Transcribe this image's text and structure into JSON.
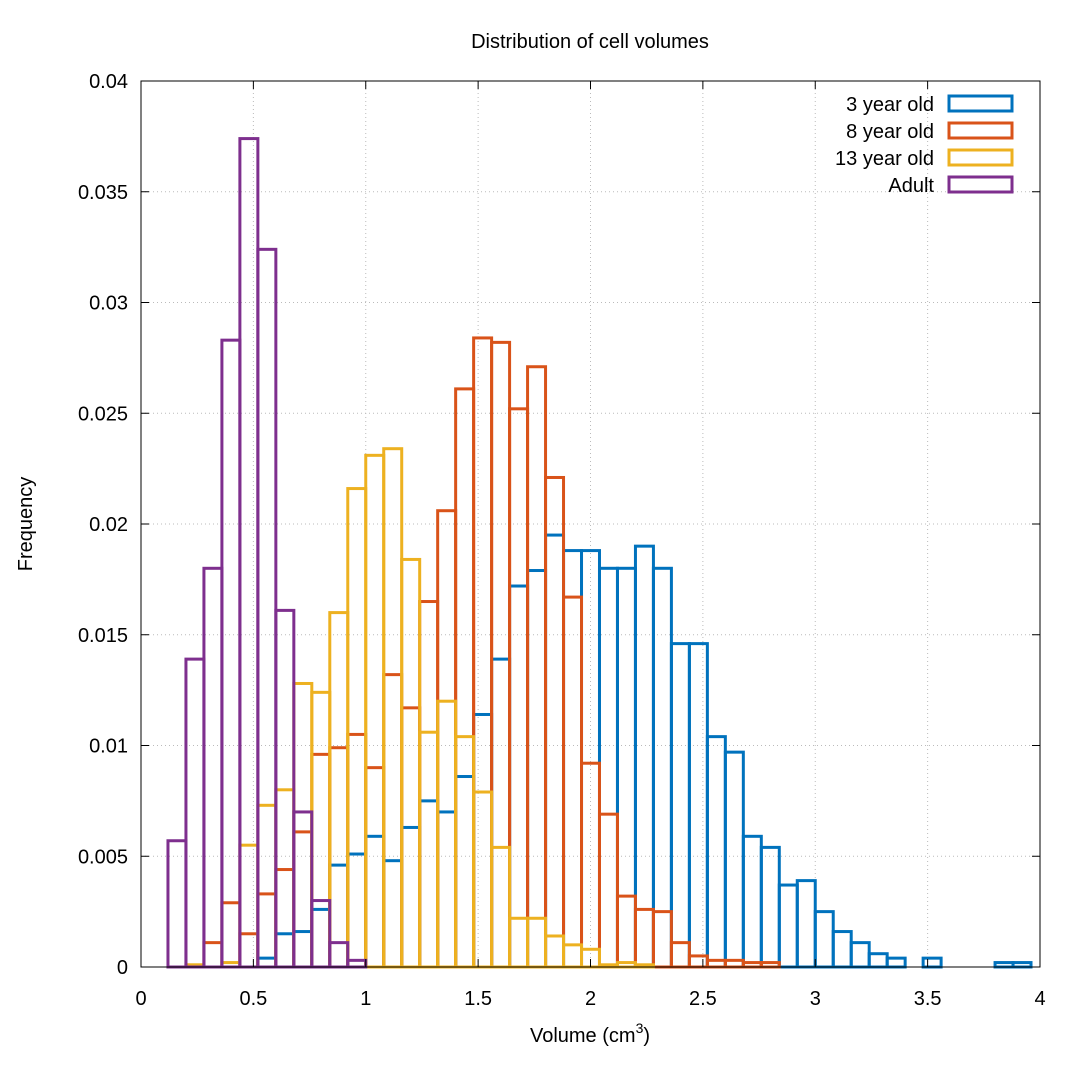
{
  "chart_data": {
    "type": "bar",
    "title": "Distribution of cell volumes",
    "xlabel": "Volume (cm",
    "xlabel_superscript": "3",
    "xlabel_suffix": ")",
    "ylabel": "Frequency",
    "xlim": [
      0,
      4
    ],
    "ylim": [
      0,
      0.04
    ],
    "xticks": [
      "0",
      "0.5",
      "1",
      "1.5",
      "2",
      "2.5",
      "3",
      "3.5",
      "4"
    ],
    "yticks": [
      "0",
      "0.005",
      "0.01",
      "0.015",
      "0.02",
      "0.025",
      "0.03",
      "0.035",
      "0.04"
    ],
    "grid": true,
    "legend_position": "top-right",
    "bin_width": 0.08,
    "series": [
      {
        "name": "3 year old",
        "color": "#0072bd",
        "x": [
          0.56,
          0.64,
          0.72,
          0.8,
          0.88,
          0.96,
          1.04,
          1.12,
          1.2,
          1.28,
          1.36,
          1.44,
          1.52,
          1.6,
          1.68,
          1.76,
          1.84,
          1.92,
          2.0,
          2.08,
          2.16,
          2.24,
          2.32,
          2.4,
          2.48,
          2.56,
          2.64,
          2.72,
          2.8,
          2.88,
          2.96,
          3.04,
          3.12,
          3.2,
          3.28,
          3.36,
          3.52,
          3.84,
          3.92
        ],
        "values": [
          0.0004,
          0.0015,
          0.0016,
          0.0026,
          0.0046,
          0.0051,
          0.0059,
          0.0048,
          0.0063,
          0.0075,
          0.007,
          0.0086,
          0.0114,
          0.0139,
          0.0172,
          0.0179,
          0.0195,
          0.0188,
          0.0188,
          0.018,
          0.018,
          0.019,
          0.018,
          0.0146,
          0.0146,
          0.0104,
          0.0097,
          0.0059,
          0.0054,
          0.0037,
          0.0039,
          0.0025,
          0.0016,
          0.0011,
          0.0006,
          0.0004,
          0.0004,
          0.0002,
          0.0002
        ]
      },
      {
        "name": "8 year old",
        "color": "#d95319",
        "x": [
          0.32,
          0.4,
          0.48,
          0.56,
          0.64,
          0.72,
          0.8,
          0.88,
          0.96,
          1.04,
          1.12,
          1.2,
          1.28,
          1.36,
          1.44,
          1.52,
          1.6,
          1.68,
          1.76,
          1.84,
          1.92,
          2.0,
          2.08,
          2.16,
          2.24,
          2.32,
          2.4,
          2.48,
          2.56,
          2.64,
          2.72,
          2.8
        ],
        "values": [
          0.0011,
          0.0029,
          0.0015,
          0.0033,
          0.0044,
          0.0061,
          0.0096,
          0.0099,
          0.0105,
          0.009,
          0.0132,
          0.0117,
          0.0165,
          0.0206,
          0.0261,
          0.0284,
          0.0282,
          0.0252,
          0.0271,
          0.0221,
          0.0167,
          0.0092,
          0.0069,
          0.0032,
          0.0026,
          0.0025,
          0.0011,
          0.0005,
          0.0003,
          0.0003,
          0.0002,
          0.0002
        ]
      },
      {
        "name": "13 year old",
        "color": "#edb120",
        "x": [
          0.24,
          0.4,
          0.48,
          0.56,
          0.64,
          0.72,
          0.8,
          0.88,
          0.96,
          1.04,
          1.12,
          1.2,
          1.28,
          1.36,
          1.44,
          1.52,
          1.6,
          1.68,
          1.76,
          1.84,
          1.92,
          2.0,
          2.08,
          2.16,
          2.24
        ],
        "values": [
          0.0001,
          0.0002,
          0.0055,
          0.0073,
          0.008,
          0.0128,
          0.0124,
          0.016,
          0.0216,
          0.0231,
          0.0234,
          0.0184,
          0.0106,
          0.012,
          0.0104,
          0.0079,
          0.0054,
          0.0022,
          0.0022,
          0.0014,
          0.001,
          0.0008,
          0.0001,
          0.0002,
          0.0001
        ]
      },
      {
        "name": "Adult",
        "color": "#7e2f8e",
        "x": [
          0.16,
          0.24,
          0.32,
          0.4,
          0.48,
          0.56,
          0.64,
          0.72,
          0.8,
          0.88,
          0.96
        ],
        "values": [
          0.0057,
          0.0139,
          0.018,
          0.0283,
          0.0374,
          0.0324,
          0.0161,
          0.007,
          0.003,
          0.0011,
          0.0003
        ]
      }
    ]
  }
}
